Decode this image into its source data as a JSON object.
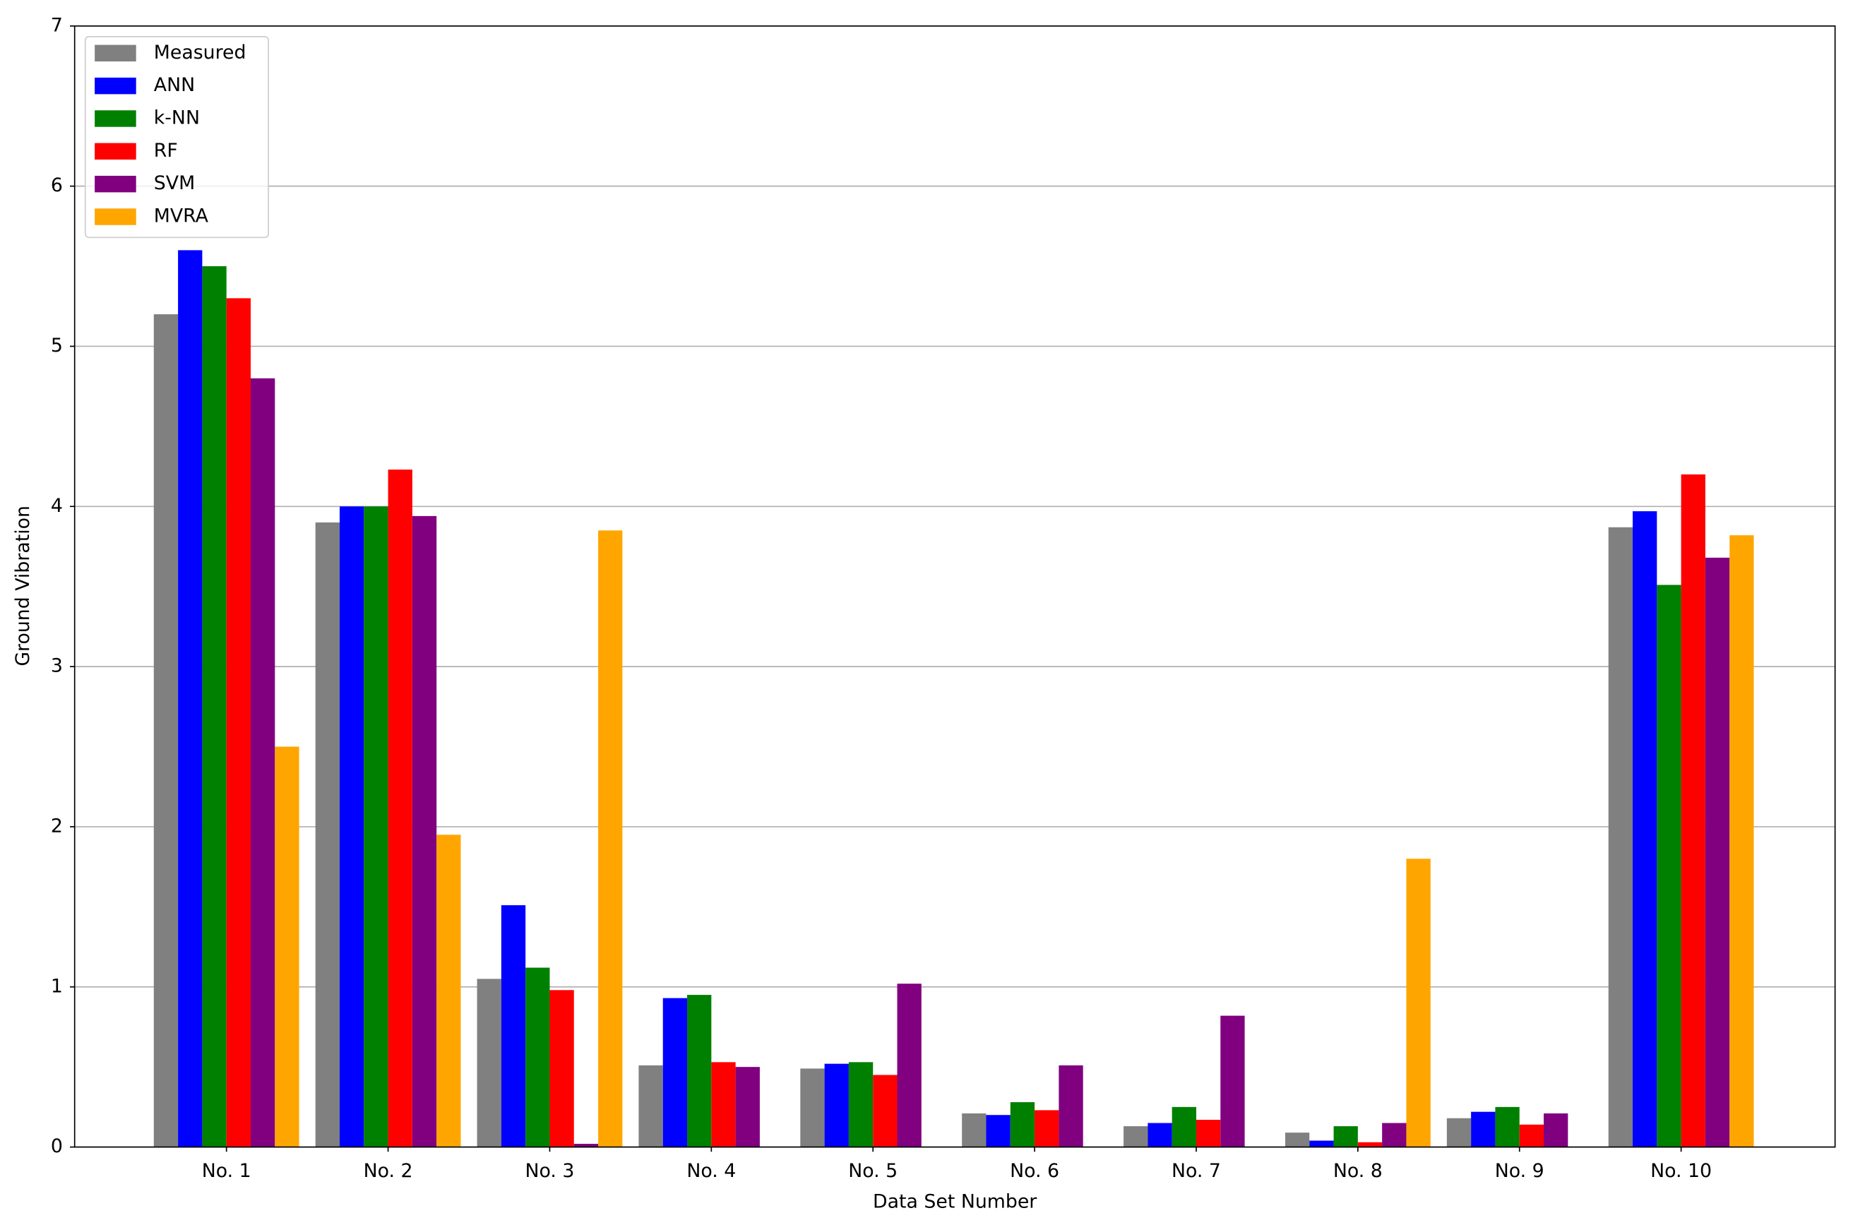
{
  "chart_data": {
    "type": "bar",
    "x_label": "Data Set Number",
    "y_label": "Ground Vibration",
    "categories": [
      "No. 1",
      "No. 2",
      "No. 3",
      "No. 4",
      "No. 5",
      "No. 6",
      "No. 7",
      "No. 8",
      "No. 9",
      "No. 10"
    ],
    "series": [
      {
        "name": "Measured",
        "color": "#808080",
        "values": [
          5.2,
          3.9,
          1.05,
          0.51,
          0.49,
          0.21,
          0.13,
          0.09,
          0.18,
          3.87
        ]
      },
      {
        "name": "ANN",
        "color": "#0000ff",
        "values": [
          5.6,
          4.0,
          1.51,
          0.93,
          0.52,
          0.2,
          0.15,
          0.04,
          0.22,
          3.97
        ]
      },
      {
        "name": "k-NN",
        "color": "#008000",
        "values": [
          5.5,
          4.0,
          1.12,
          0.95,
          0.53,
          0.28,
          0.25,
          0.13,
          0.25,
          3.51
        ]
      },
      {
        "name": "RF",
        "color": "#ff0000",
        "values": [
          5.3,
          4.23,
          0.98,
          0.53,
          0.45,
          0.23,
          0.17,
          0.03,
          0.14,
          4.2
        ]
      },
      {
        "name": "SVM",
        "color": "#800080",
        "values": [
          4.8,
          3.94,
          0.02,
          0.5,
          1.02,
          0.51,
          0.82,
          0.15,
          0.21,
          3.68
        ]
      },
      {
        "name": "MVRA",
        "color": "#ffa500",
        "values": [
          2.5,
          1.95,
          3.85,
          0,
          0,
          0,
          0,
          1.8,
          0,
          3.82
        ]
      }
    ],
    "ylim": [
      0,
      7
    ],
    "yticks": [
      0,
      1,
      2,
      3,
      4,
      5,
      6,
      7
    ],
    "grid": true,
    "legend": "upper left"
  }
}
